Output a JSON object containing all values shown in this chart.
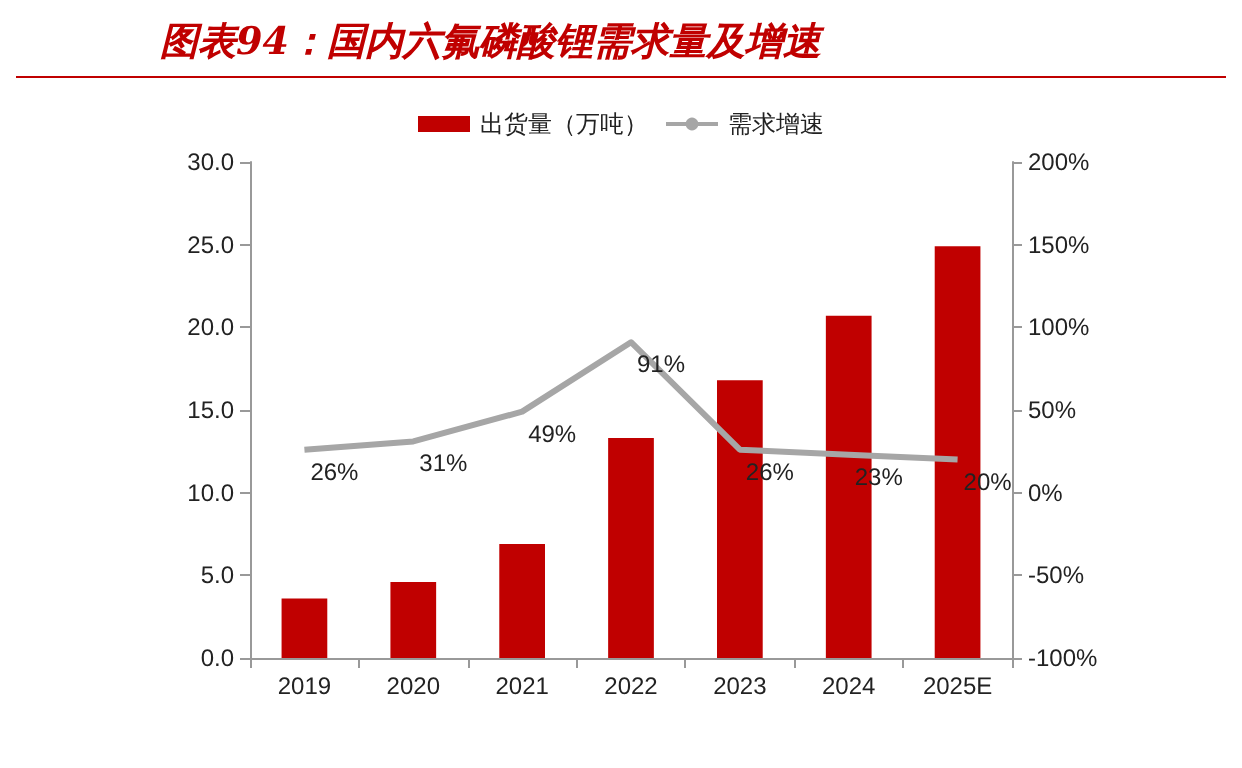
{
  "chart_data": {
    "type": "bar",
    "title": "图表94：国内六氟磷酸锂需求量及增速",
    "categories": [
      "2019",
      "2020",
      "2021",
      "2022",
      "2023",
      "2024",
      "2025E"
    ],
    "series": [
      {
        "name": "出货量（万吨）",
        "color": "#c00000",
        "values": [
          3.6,
          4.6,
          6.9,
          13.3,
          16.8,
          20.7,
          24.9
        ]
      },
      {
        "name": "需求增速",
        "type": "line",
        "axis": "y2",
        "color": "#a6a6a6",
        "marker": "none",
        "values": [
          26,
          31,
          49,
          91,
          26,
          23,
          20
        ],
        "value_labels": [
          "26%",
          "31%",
          "49%",
          "91%",
          "26%",
          "23%",
          "20%"
        ]
      }
    ],
    "ylim": [
      0,
      30
    ],
    "yticks": [
      {
        "value": 0,
        "label": "0.0"
      },
      {
        "value": 5,
        "label": "5.0"
      },
      {
        "value": 10,
        "label": "10.0"
      },
      {
        "value": 15,
        "label": "15.0"
      },
      {
        "value": 20,
        "label": "20.0"
      },
      {
        "value": 25,
        "label": "25.0"
      },
      {
        "value": 30,
        "label": "30.0"
      }
    ],
    "y2lim": [
      -100,
      200
    ],
    "y2ticks": [
      {
        "value": -100,
        "label": "-100%"
      },
      {
        "value": -50,
        "label": "-50%"
      },
      {
        "value": 0,
        "label": "0%"
      },
      {
        "value": 50,
        "label": "50%"
      },
      {
        "value": 100,
        "label": "100%"
      },
      {
        "value": 150,
        "label": "150%"
      },
      {
        "value": 200,
        "label": "200%"
      }
    ],
    "grid": false,
    "legend": "top"
  }
}
